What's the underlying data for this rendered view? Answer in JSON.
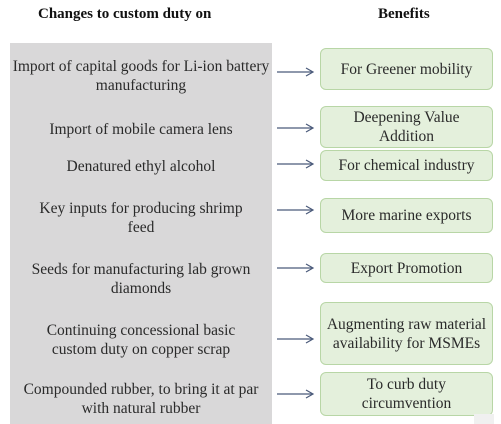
{
  "headers": {
    "left": "Changes to custom duty on",
    "right": "Benefits"
  },
  "rows": [
    {
      "change": "Import of capital goods for Li-ion battery manufacturing",
      "benefit": "For Greener mobility"
    },
    {
      "change": "Import of mobile camera lens",
      "benefit": "Deepening Value Addition"
    },
    {
      "change": "Denatured ethyl alcohol",
      "benefit": "For chemical industry"
    },
    {
      "change": "Key inputs for producing shrimp feed",
      "benefit": "More marine exports"
    },
    {
      "change": "Seeds  for manufacturing lab grown diamonds",
      "benefit": "Export Promotion"
    },
    {
      "change": "Continuing concessional basic custom duty on copper scrap",
      "benefit": "Augmenting raw material availability for MSMEs"
    },
    {
      "change": "Compounded rubber, to bring it at par with natural rubber",
      "benefit": "To curb duty circumvention"
    }
  ],
  "colors": {
    "panel": "#d9d8d9",
    "box_fill": "#e4f0dc",
    "box_border": "#b8d6a6",
    "arrow": "#4a5a7a"
  }
}
